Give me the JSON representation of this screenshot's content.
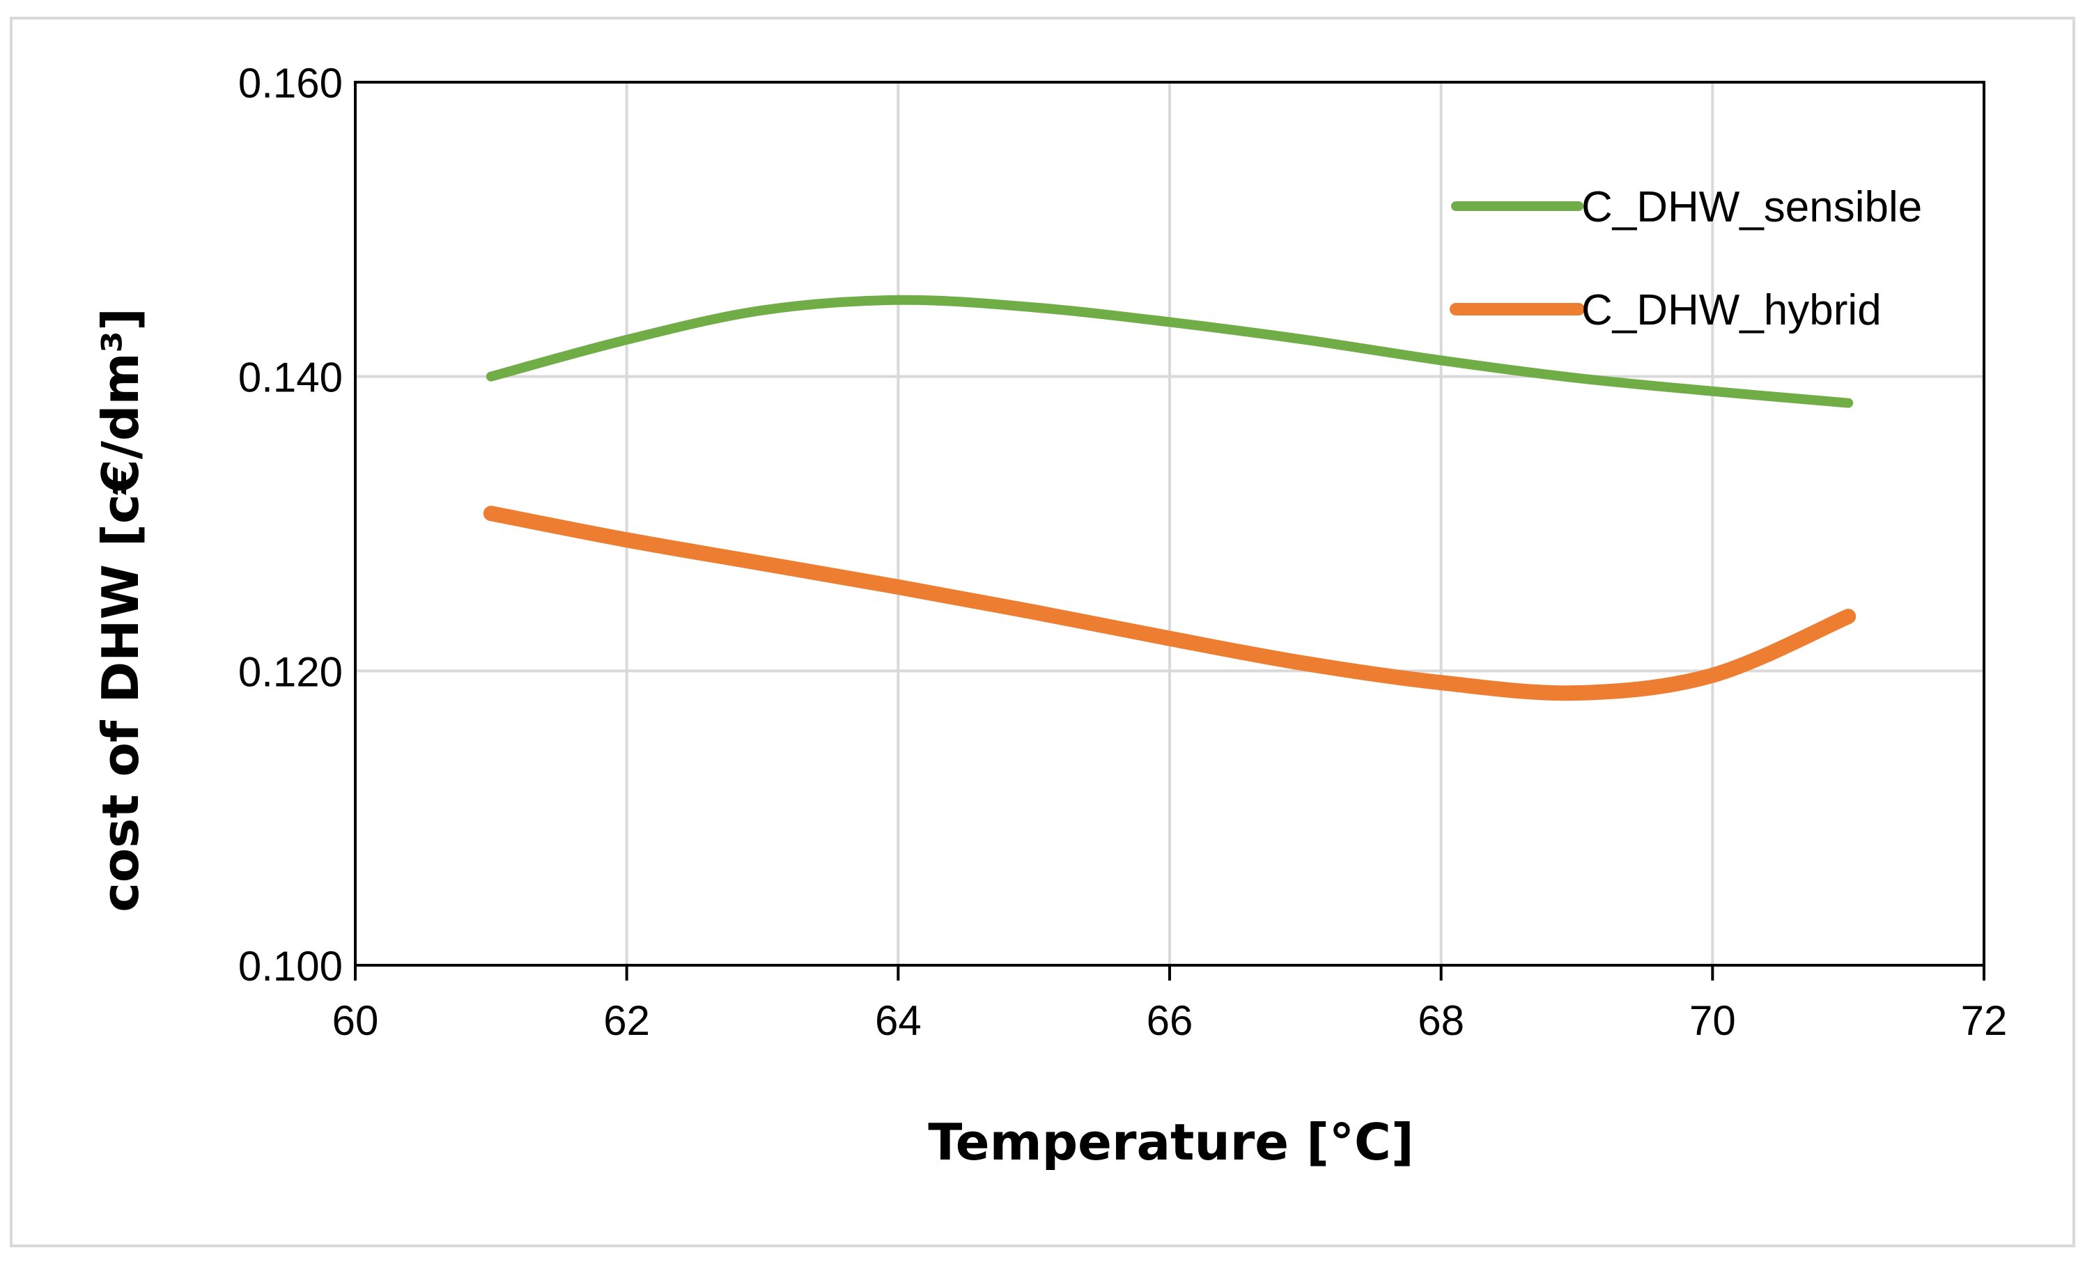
{
  "chart_data": {
    "type": "line",
    "title": "",
    "xlabel": "Temperature [°C]",
    "ylabel": "cost of DHW [c€/dm³]",
    "xlim": [
      60,
      72
    ],
    "ylim": [
      0.1,
      0.16
    ],
    "x_ticks": [
      "60",
      "62",
      "64",
      "66",
      "68",
      "70",
      "72"
    ],
    "y_ticks": [
      "0.100",
      "0.120",
      "0.140",
      "0.160"
    ],
    "grid": true,
    "legend_position": "top-right",
    "series": [
      {
        "name": "C_DHW_sensible",
        "color": "#70ad47",
        "x": [
          61,
          62,
          63,
          64,
          65,
          66,
          67,
          68,
          69,
          70,
          71
        ],
        "values": [
          0.14,
          0.1425,
          0.1445,
          0.1452,
          0.1447,
          0.1437,
          0.1425,
          0.1411,
          0.1399,
          0.139,
          0.1382
        ]
      },
      {
        "name": "C_DHW_hybrid",
        "color": "#ed7d31",
        "x": [
          61,
          62,
          63,
          64,
          65,
          66,
          67,
          68,
          69,
          70,
          71
        ],
        "values": [
          0.1307,
          0.1289,
          0.1273,
          0.1257,
          0.124,
          0.1222,
          0.1205,
          0.1192,
          0.1185,
          0.1197,
          0.1237
        ]
      }
    ]
  }
}
